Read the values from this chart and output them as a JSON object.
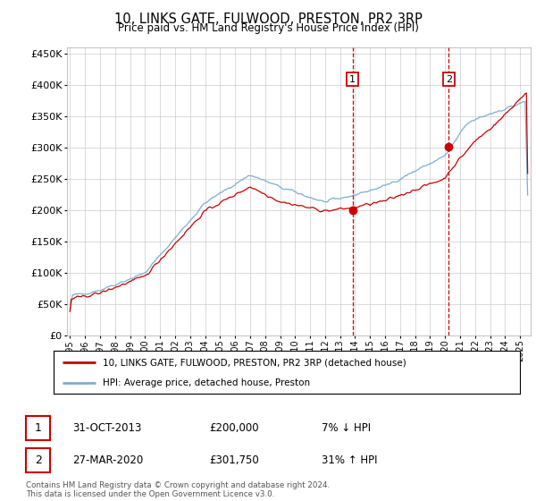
{
  "title": "10, LINKS GATE, FULWOOD, PRESTON, PR2 3RP",
  "subtitle": "Price paid vs. HM Land Registry's House Price Index (HPI)",
  "yticks": [
    0,
    50000,
    100000,
    150000,
    200000,
    250000,
    300000,
    350000,
    400000,
    450000
  ],
  "ylim": [
    0,
    460000
  ],
  "xlim_start": 1994.8,
  "xlim_end": 2025.7,
  "sale1_x": 2013.833,
  "sale1_y": 200000,
  "sale2_x": 2020.25,
  "sale2_y": 301750,
  "legend_line1": "10, LINKS GATE, FULWOOD, PRESTON, PR2 3RP (detached house)",
  "legend_line2": "HPI: Average price, detached house, Preston",
  "annotation1_label": "1",
  "annotation1_date": "31-OCT-2013",
  "annotation1_price": "£200,000",
  "annotation1_hpi": "7% ↓ HPI",
  "annotation2_label": "2",
  "annotation2_date": "27-MAR-2020",
  "annotation2_price": "£301,750",
  "annotation2_hpi": "31% ↑ HPI",
  "footer": "Contains HM Land Registry data © Crown copyright and database right 2024.\nThis data is licensed under the Open Government Licence v3.0.",
  "line_color_red": "#cc0000",
  "line_color_blue": "#7aafd4",
  "vline_color": "#cc0000",
  "background_color": "#ffffff",
  "grid_color": "#cccccc"
}
